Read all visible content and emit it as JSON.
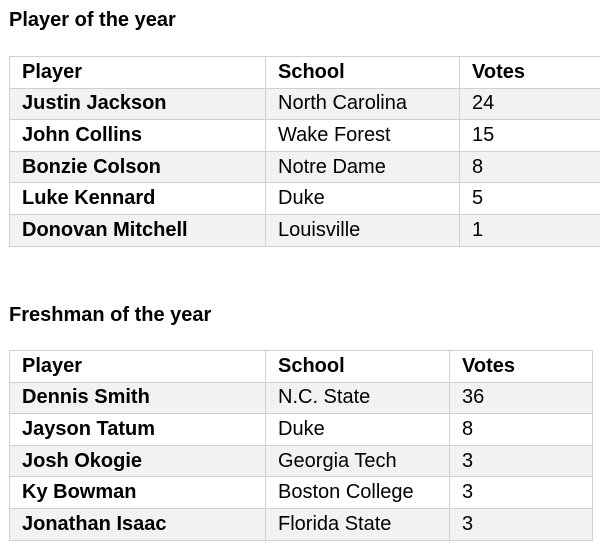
{
  "sections": [
    {
      "title": "Player of the year",
      "headers": [
        "Player",
        "School",
        "Votes"
      ],
      "rows": [
        [
          "Justin Jackson",
          "North Carolina",
          "24"
        ],
        [
          "John Collins",
          "Wake Forest",
          "15"
        ],
        [
          "Bonzie Colson",
          "Notre Dame",
          "8"
        ],
        [
          "Luke Kennard",
          "Duke",
          "5"
        ],
        [
          "Donovan Mitchell",
          "Louisville",
          "1"
        ]
      ]
    },
    {
      "title": "Freshman of the year",
      "headers": [
        "Player",
        "School",
        "Votes"
      ],
      "rows": [
        [
          "Dennis Smith",
          "N.C. State",
          "36"
        ],
        [
          "Jayson Tatum",
          "Duke",
          "8"
        ],
        [
          "Josh Okogie",
          "Georgia Tech",
          "3"
        ],
        [
          "Ky Bowman",
          "Boston College",
          "3"
        ],
        [
          "Jonathan Isaac",
          "Florida State",
          "3"
        ]
      ]
    }
  ]
}
